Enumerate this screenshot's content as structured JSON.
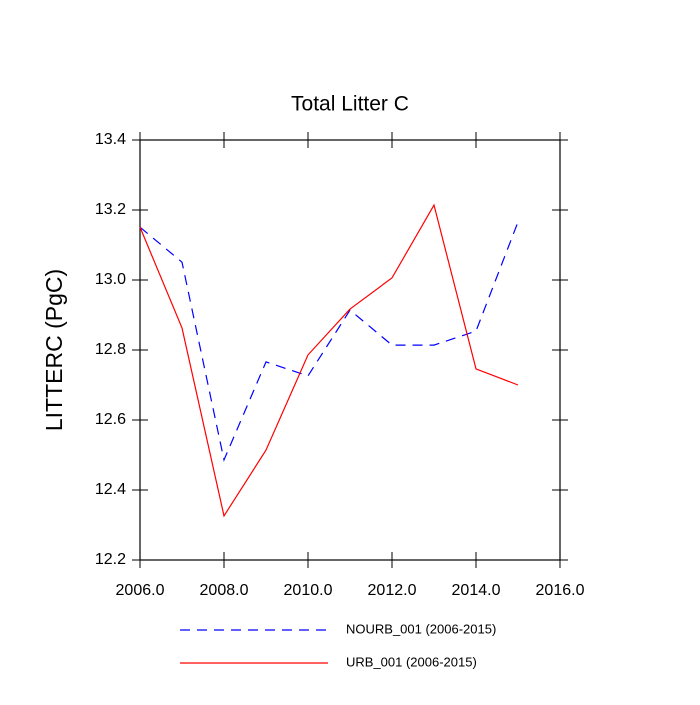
{
  "chart_data": {
    "type": "line",
    "title": "Total Litter C",
    "ylabel": "LITTERC  (PgC)",
    "x": [
      2006,
      2007,
      2008,
      2009,
      2010,
      2011,
      2012,
      2013,
      2014,
      2015
    ],
    "series": [
      {
        "name": "NOURB_001 (2006-2015)",
        "color": "#0000ff",
        "dashed": true,
        "values": [
          13.151,
          13.051,
          12.486,
          12.766,
          12.726,
          12.914,
          12.814,
          12.814,
          12.854,
          13.166
        ]
      },
      {
        "name": "URB_001 (2006-2015)",
        "color": "#ff0000",
        "dashed": false,
        "values": [
          13.151,
          12.863,
          12.326,
          12.514,
          12.786,
          12.917,
          13.006,
          13.214,
          12.746,
          12.7
        ]
      }
    ],
    "xlim": [
      2006,
      2016
    ],
    "xticks": [
      {
        "value": 2006,
        "label": "2006.0"
      },
      {
        "value": 2008,
        "label": "2008.0"
      },
      {
        "value": 2010,
        "label": "2010.0"
      },
      {
        "value": 2012,
        "label": "2012.0"
      },
      {
        "value": 2014,
        "label": "2014.0"
      },
      {
        "value": 2016,
        "label": "2016.0"
      }
    ],
    "ylim": [
      12.2,
      13.4
    ],
    "yticks": [
      12.2,
      12.4,
      12.6,
      12.8,
      {
        "value": 13,
        "label": "13.0"
      },
      13.2,
      13.4
    ],
    "grid": false
  }
}
